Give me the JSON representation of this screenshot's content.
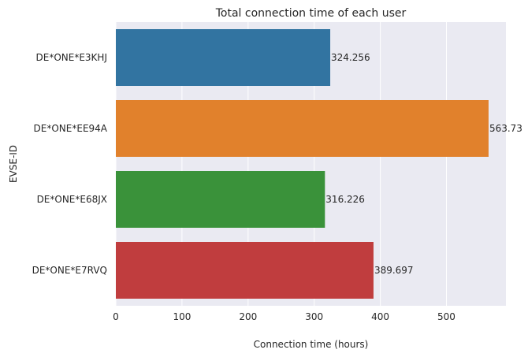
{
  "chart_data": {
    "type": "bar",
    "orientation": "horizontal",
    "title": "Total connection time of each user",
    "xlabel": "Connection time (hours)",
    "ylabel": "EVSE-ID",
    "categories": [
      "DE*ONE*E3KHJ",
      "DE*ONE*EE94A",
      "DE*ONE*E68JX",
      "DE*ONE*E7RVQ"
    ],
    "values": [
      324.256,
      563.73,
      316.226,
      389.697
    ],
    "value_labels": [
      "324.256",
      "563.73",
      "316.226",
      "389.697"
    ],
    "colors": [
      "#3274a1",
      "#e1812c",
      "#3a923a",
      "#c03d3e"
    ],
    "xlim": [
      0,
      590
    ],
    "xticks": [
      0,
      100,
      200,
      300,
      400,
      500
    ],
    "grid": true,
    "background": "#eaeaf2"
  }
}
